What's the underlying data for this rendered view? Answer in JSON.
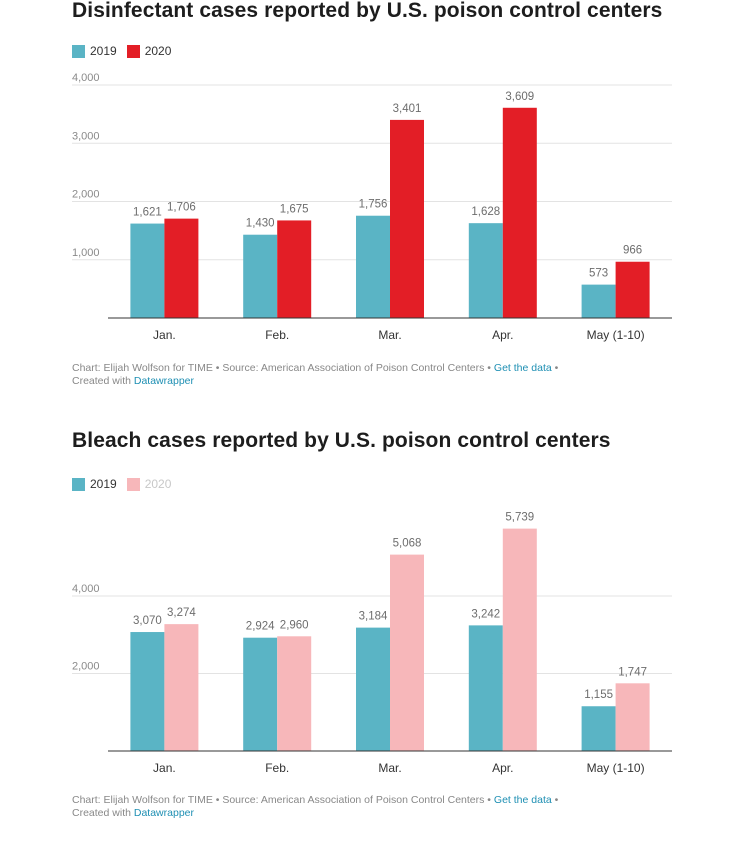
{
  "charts": [
    {
      "title": "Disinfectant cases reported by U.S. poison control centers",
      "legend": [
        {
          "label": "2019",
          "color": "#5ab4c5",
          "faded": false
        },
        {
          "label": "2020",
          "color": "#e31e26",
          "faded": false
        }
      ],
      "footer": {
        "text": "Chart: Elijah Wolfson for TIME • Source: American Association of Poison Control Centers • ",
        "link": "Get the data",
        "sep": " •",
        "created": "Created with ",
        "created_link": "Datawrapper"
      }
    },
    {
      "title": "Bleach cases reported by U.S. poison control centers",
      "legend": [
        {
          "label": "2019",
          "color": "#5ab4c5",
          "faded": false
        },
        {
          "label": "2020",
          "color": "#f7b7ba",
          "faded": true
        }
      ],
      "footer": {
        "text": "Chart: Elijah Wolfson for TIME • Source: American Association of Poison Control Centers • ",
        "link": "Get the data",
        "sep": " •",
        "created": "Created with ",
        "created_link": "Datawrapper"
      }
    }
  ],
  "chart_data": [
    {
      "type": "bar",
      "title": "Disinfectant cases reported by U.S. poison control centers",
      "categories": [
        "Jan.",
        "Feb.",
        "Mar.",
        "Apr.",
        "May (1-10)"
      ],
      "series": [
        {
          "name": "2019",
          "values": [
            1621,
            1430,
            1756,
            1628,
            573
          ],
          "labels": [
            "1,621",
            "1,430",
            "1,756",
            "1,628",
            "573"
          ],
          "color": "#5ab4c5"
        },
        {
          "name": "2020",
          "values": [
            1706,
            1675,
            3401,
            3609,
            966
          ],
          "labels": [
            "1,706",
            "1,675",
            "3,401",
            "3,609",
            "966"
          ],
          "color": "#e31e26"
        }
      ],
      "yticks": [
        1000,
        2000,
        3000,
        4000
      ],
      "ytick_labels": [
        "1,000",
        "2,000",
        "3,000",
        "4,000"
      ],
      "ylim": [
        0,
        4000
      ],
      "grid": true,
      "legend_position": "top-left"
    },
    {
      "type": "bar",
      "title": "Bleach cases reported by U.S. poison control centers",
      "categories": [
        "Jan.",
        "Feb.",
        "Mar.",
        "Apr.",
        "May (1-10)"
      ],
      "series": [
        {
          "name": "2019",
          "values": [
            3070,
            2924,
            3184,
            3242,
            1155
          ],
          "labels": [
            "3,070",
            "2,924",
            "3,184",
            "3,242",
            "1,155"
          ],
          "color": "#5ab4c5"
        },
        {
          "name": "2020",
          "values": [
            3274,
            2960,
            5068,
            5739,
            1747
          ],
          "labels": [
            "3,274",
            "2,960",
            "5,068",
            "5,739",
            "1,747"
          ],
          "color": "#f7b7ba"
        }
      ],
      "yticks": [
        2000,
        4000
      ],
      "ytick_labels": [
        "2,000",
        "4,000"
      ],
      "ylim": [
        0,
        6000
      ],
      "grid": true,
      "legend_position": "top-left"
    }
  ]
}
